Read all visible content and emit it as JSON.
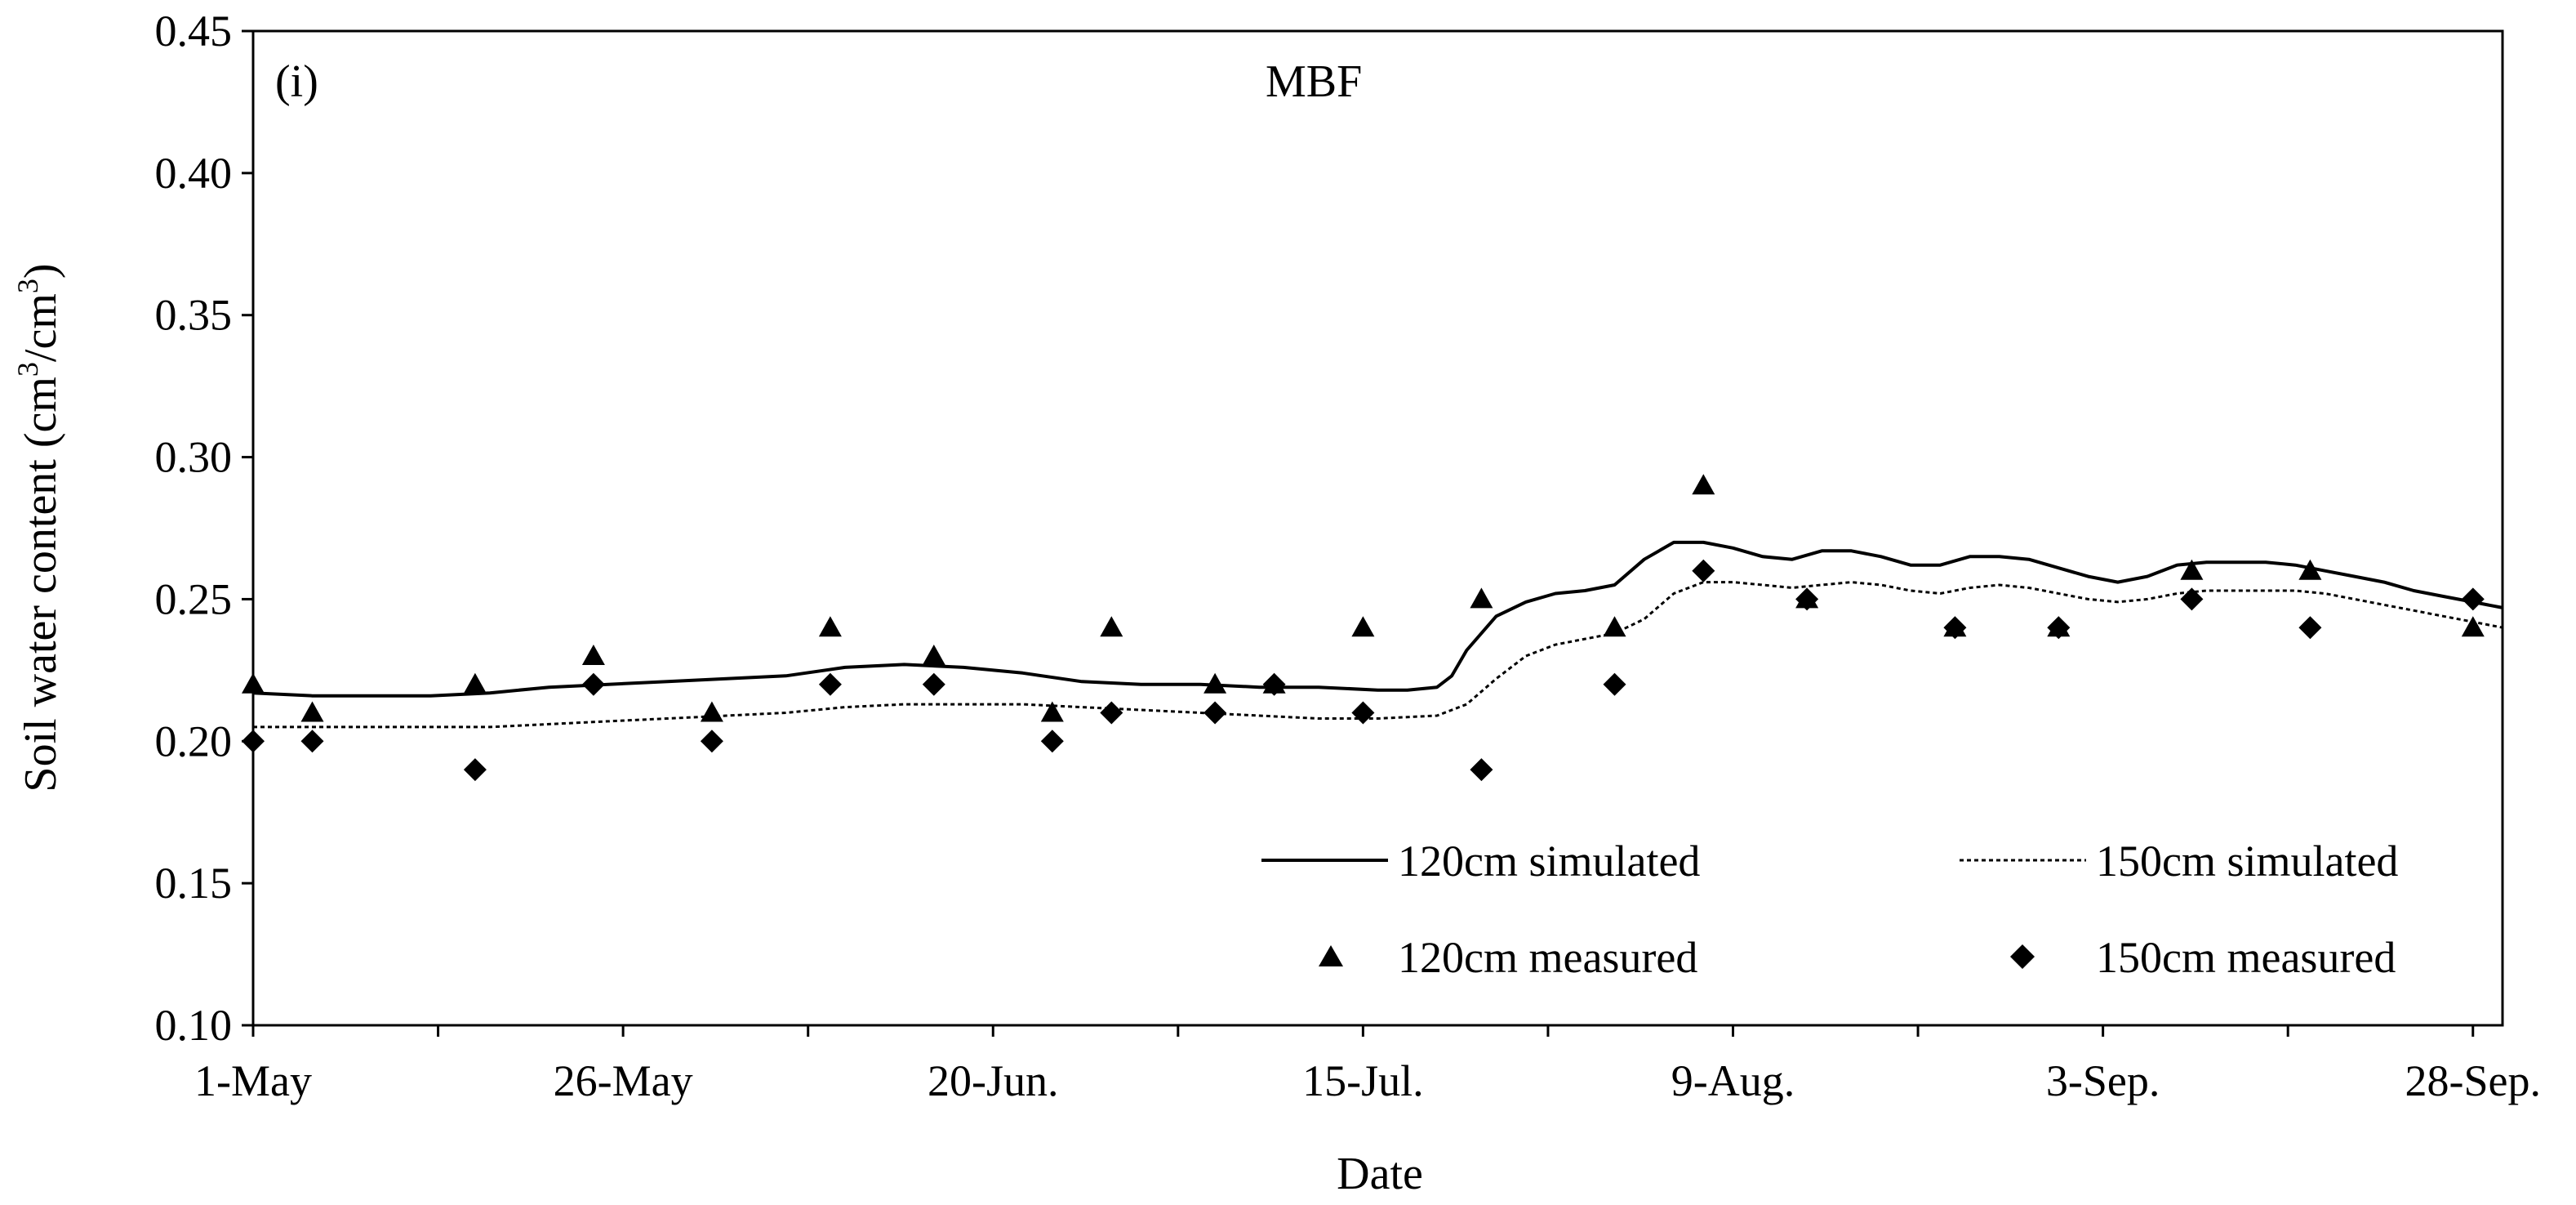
{
  "chart_data": {
    "type": "line",
    "panel_label": "(i)",
    "title": "MBF",
    "xlabel": "Date",
    "ylabel_main": "Soil water content (cm",
    "ylabel_sup1": "3",
    "ylabel_mid": "/cm",
    "ylabel_sup2": "3",
    "ylabel_end": ")",
    "ylim": [
      0.1,
      0.45
    ],
    "xlim_day": [
      0,
      152
    ],
    "yticks": [
      0.1,
      0.15,
      0.2,
      0.25,
      0.3,
      0.35,
      0.4,
      0.45
    ],
    "ytick_labels": [
      "0.10",
      "0.15",
      "0.20",
      "0.25",
      "0.30",
      "0.35",
      "0.40",
      "0.45"
    ],
    "xticks_day": [
      0,
      12.5,
      25,
      37.5,
      50,
      62.5,
      75,
      87.5,
      100,
      112.5,
      125,
      137.5,
      150
    ],
    "xtick_labels": [
      {
        "day": 0,
        "label": "1-May"
      },
      {
        "day": 25,
        "label": "26-May"
      },
      {
        "day": 50,
        "label": "20-Jun."
      },
      {
        "day": 75,
        "label": "15-Jul."
      },
      {
        "day": 100,
        "label": "9-Aug."
      },
      {
        "day": 125,
        "label": "3-Sep."
      },
      {
        "day": 150,
        "label": "28-Sep."
      }
    ],
    "legend": {
      "sim120": "120cm simulated",
      "sim150": "150cm simulated",
      "meas120": "120cm measured",
      "meas150": "150cm measured"
    },
    "series": [
      {
        "name": "120cm simulated",
        "style": "solid",
        "x": [
          0,
          4,
          8,
          12,
          16,
          20,
          24,
          28,
          32,
          36,
          40,
          44,
          48,
          52,
          56,
          60,
          64,
          68,
          72,
          76,
          78,
          80,
          81,
          82,
          84,
          86,
          88,
          90,
          92,
          94,
          96,
          98,
          100,
          102,
          104,
          106,
          108,
          110,
          112,
          114,
          116,
          118,
          120,
          122,
          124,
          126,
          128,
          130,
          132,
          134,
          136,
          138,
          140,
          142,
          144,
          146,
          148,
          150,
          152
        ],
        "y": [
          0.217,
          0.216,
          0.216,
          0.216,
          0.217,
          0.219,
          0.22,
          0.221,
          0.222,
          0.223,
          0.226,
          0.227,
          0.226,
          0.224,
          0.221,
          0.22,
          0.22,
          0.219,
          0.219,
          0.218,
          0.218,
          0.219,
          0.223,
          0.232,
          0.244,
          0.249,
          0.252,
          0.253,
          0.255,
          0.264,
          0.27,
          0.27,
          0.268,
          0.265,
          0.264,
          0.267,
          0.267,
          0.265,
          0.262,
          0.262,
          0.265,
          0.265,
          0.264,
          0.261,
          0.258,
          0.256,
          0.258,
          0.262,
          0.263,
          0.263,
          0.263,
          0.262,
          0.26,
          0.258,
          0.256,
          0.253,
          0.251,
          0.249,
          0.247
        ]
      },
      {
        "name": "150cm simulated",
        "style": "dotted",
        "x": [
          0,
          4,
          8,
          12,
          16,
          20,
          24,
          28,
          32,
          36,
          40,
          44,
          48,
          52,
          56,
          60,
          64,
          68,
          72,
          76,
          80,
          82,
          84,
          86,
          88,
          90,
          92,
          94,
          96,
          98,
          100,
          102,
          104,
          106,
          108,
          110,
          112,
          114,
          116,
          118,
          120,
          122,
          124,
          126,
          128,
          130,
          132,
          134,
          136,
          138,
          140,
          142,
          144,
          146,
          148,
          150,
          152
        ],
        "y": [
          0.205,
          0.205,
          0.205,
          0.205,
          0.205,
          0.206,
          0.207,
          0.208,
          0.209,
          0.21,
          0.212,
          0.213,
          0.213,
          0.213,
          0.212,
          0.211,
          0.21,
          0.209,
          0.208,
          0.208,
          0.209,
          0.213,
          0.222,
          0.23,
          0.234,
          0.236,
          0.238,
          0.243,
          0.252,
          0.256,
          0.256,
          0.255,
          0.254,
          0.255,
          0.256,
          0.255,
          0.253,
          0.252,
          0.254,
          0.255,
          0.254,
          0.252,
          0.25,
          0.249,
          0.25,
          0.252,
          0.253,
          0.253,
          0.253,
          0.253,
          0.252,
          0.25,
          0.248,
          0.246,
          0.244,
          0.242,
          0.24
        ]
      },
      {
        "name": "120cm measured",
        "marker": "triangle",
        "x": [
          0,
          4,
          15,
          23,
          31,
          39,
          46,
          54,
          58,
          65,
          69,
          75,
          83,
          92,
          98,
          105,
          115,
          122,
          131,
          139,
          150
        ],
        "y": [
          0.22,
          0.21,
          0.22,
          0.23,
          0.21,
          0.24,
          0.23,
          0.21,
          0.24,
          0.22,
          0.22,
          0.24,
          0.25,
          0.24,
          0.29,
          0.25,
          0.24,
          0.24,
          0.26,
          0.26,
          0.24
        ]
      },
      {
        "name": "150cm measured",
        "marker": "diamond",
        "x": [
          0,
          4,
          15,
          23,
          31,
          39,
          46,
          54,
          58,
          65,
          69,
          75,
          83,
          92,
          98,
          105,
          115,
          122,
          131,
          139,
          150
        ],
        "y": [
          0.2,
          0.2,
          0.19,
          0.22,
          0.2,
          0.22,
          0.22,
          0.2,
          0.21,
          0.21,
          0.22,
          0.21,
          0.19,
          0.22,
          0.26,
          0.25,
          0.24,
          0.24,
          0.25,
          0.24,
          0.25
        ]
      }
    ]
  }
}
